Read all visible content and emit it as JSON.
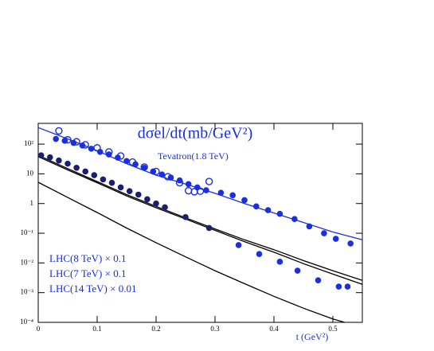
{
  "chart_data": {
    "type": "scatter",
    "title": "dσel/dt(mb/GeV²)",
    "x_label": "t (GeV²)",
    "log_y": true,
    "xlim": [
      0,
      0.55
    ],
    "ylim": [
      0.0001,
      500
    ],
    "xticks": [
      0,
      0.1,
      0.2,
      0.3,
      0.4,
      0.5
    ],
    "yticks": [
      {
        "value": 0.0001,
        "label": "10⁻⁴"
      },
      {
        "value": 0.001,
        "label": "10⁻³"
      },
      {
        "value": 0.01,
        "label": "10⁻²"
      },
      {
        "value": 0.1,
        "label": "10⁻¹"
      },
      1,
      10,
      {
        "value": 100,
        "label": "10²"
      }
    ],
    "annotations": [
      "Tevatron(1.8 TeV)",
      "LHC(8 TeV) × 0.1",
      "LHC(7 TeV) × 0.1",
      "LHC(14 TeV) × 0.01"
    ],
    "curves": [
      {
        "color": "#1a2fe0",
        "x": [
          0,
          0.05,
          0.1,
          0.15,
          0.2,
          0.25,
          0.3,
          0.35,
          0.4,
          0.45,
          0.5,
          0.55
        ],
        "values": [
          360,
          150,
          60,
          22,
          9,
          4.5,
          2.2,
          1.0,
          0.48,
          0.23,
          0.11,
          0.06
        ]
      },
      {
        "color": "#000000",
        "x": [
          0,
          0.05,
          0.1,
          0.15,
          0.2,
          0.25,
          0.3,
          0.35,
          0.4,
          0.45,
          0.5,
          0.55
        ],
        "values": [
          42,
          15,
          5.5,
          2.0,
          0.8,
          0.33,
          0.14,
          0.06,
          0.028,
          0.012,
          0.0055,
          0.0026
        ]
      },
      {
        "color": "#000000",
        "x": [
          0,
          0.05,
          0.1,
          0.15,
          0.2,
          0.25,
          0.3,
          0.35,
          0.4,
          0.45,
          0.5,
          0.55
        ],
        "values": [
          38,
          13.5,
          5.0,
          1.8,
          0.72,
          0.3,
          0.125,
          0.052,
          0.023,
          0.0095,
          0.0042,
          0.0019
        ]
      },
      {
        "color": "#000000",
        "x": [
          0,
          0.05,
          0.1,
          0.15,
          0.2,
          0.25,
          0.3,
          0.35,
          0.4,
          0.45,
          0.5,
          0.52
        ],
        "values": [
          5.2,
          1.6,
          0.5,
          0.15,
          0.048,
          0.016,
          0.0055,
          0.002,
          0.00075,
          0.0003,
          0.00013,
          0.0001
        ]
      }
    ],
    "points": [
      {
        "color": "#1a2fe0",
        "filled": true,
        "x": [
          0.03,
          0.045,
          0.06,
          0.075,
          0.09,
          0.105,
          0.12,
          0.135,
          0.15,
          0.165,
          0.18,
          0.195,
          0.21,
          0.225,
          0.24,
          0.255,
          0.27,
          0.285,
          0.31,
          0.33,
          0.35,
          0.37,
          0.39,
          0.41,
          0.435,
          0.46,
          0.485,
          0.505,
          0.53
        ],
        "values": [
          150,
          130,
          110,
          90,
          70,
          55,
          45,
          35,
          27,
          21,
          16,
          12,
          9.5,
          7.5,
          6,
          4.5,
          3.5,
          2.8,
          2.3,
          1.9,
          1.3,
          0.8,
          0.6,
          0.45,
          0.3,
          0.17,
          0.1,
          0.065,
          0.045
        ]
      },
      {
        "color": "#1a2fe0",
        "filled": false,
        "x": [
          0.035,
          0.05,
          0.065,
          0.08,
          0.1,
          0.12,
          0.14,
          0.16,
          0.18,
          0.2,
          0.22,
          0.24,
          0.255,
          0.265,
          0.275,
          0.29
        ],
        "values": [
          280,
          140,
          120,
          95,
          75,
          55,
          40,
          25,
          17,
          12,
          8,
          5,
          2.7,
          2.5,
          2.6,
          5.5
        ]
      },
      {
        "color": "#1a1f70",
        "filled": true,
        "x": [
          0.005,
          0.02,
          0.035,
          0.05,
          0.065,
          0.08,
          0.095,
          0.11,
          0.125,
          0.14,
          0.155,
          0.17,
          0.185,
          0.2,
          0.215,
          0.25,
          0.29
        ],
        "values": [
          42,
          36,
          28,
          22,
          16,
          12,
          9,
          6.5,
          5,
          3.5,
          2.6,
          2.0,
          1.4,
          1.0,
          0.75,
          0.35,
          0.15
        ]
      },
      {
        "color": "#1a2fe0",
        "filled": true,
        "x": [
          0.34,
          0.375,
          0.41,
          0.44,
          0.475,
          0.51,
          0.525
        ],
        "values": [
          0.04,
          0.02,
          0.011,
          0.0055,
          0.0026,
          0.0016,
          0.0016
        ]
      }
    ]
  }
}
